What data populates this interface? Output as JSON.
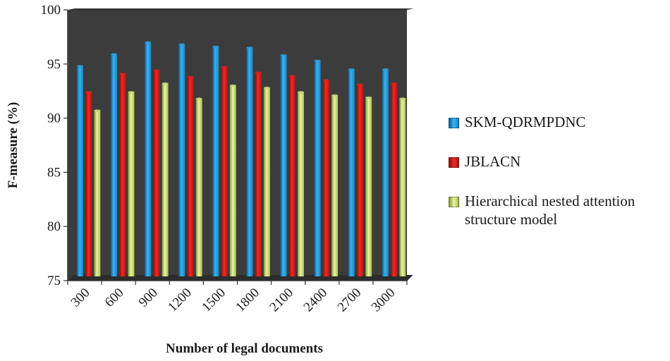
{
  "chart_data": {
    "type": "bar",
    "xlabel": "Number of legal documents",
    "ylabel": "F-measure (%)",
    "ylim": [
      75,
      100
    ],
    "yticks": [
      "75",
      "80",
      "85",
      "90",
      "95",
      "100"
    ],
    "categories": [
      "300",
      "600",
      "900",
      "1200",
      "1500",
      "1800",
      "2100",
      "2400",
      "2700",
      "3000"
    ],
    "legend_position": "right",
    "grid": false,
    "series": [
      {
        "name": "SKM-QDRMPDNC",
        "color": "#2a9fd8",
        "values": [
          94.8,
          95.9,
          97.0,
          96.8,
          96.6,
          96.5,
          95.8,
          95.3,
          94.5,
          94.5
        ]
      },
      {
        "name": "JBLACN",
        "color": "#d9211f",
        "values": [
          92.4,
          94.1,
          94.4,
          93.8,
          94.7,
          94.2,
          93.9,
          93.5,
          93.1,
          93.2
        ]
      },
      {
        "name": "Hierarchical nested attention structure model",
        "color": "#c9d87a",
        "values": [
          90.7,
          92.4,
          93.2,
          91.8,
          93.0,
          92.8,
          92.4,
          92.1,
          91.9,
          91.8
        ]
      }
    ]
  }
}
